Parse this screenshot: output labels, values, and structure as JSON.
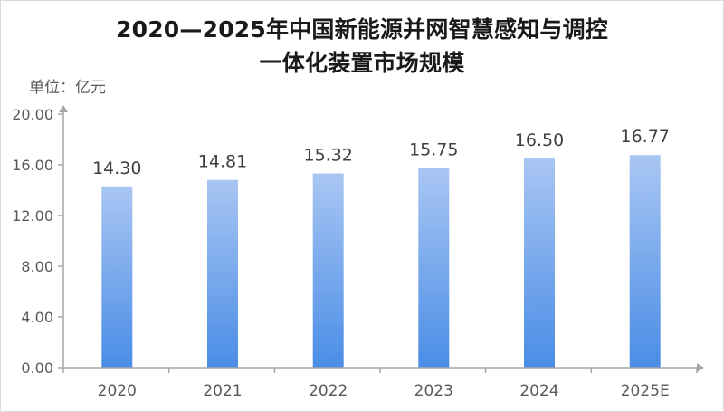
{
  "chart_data": {
    "type": "bar",
    "title_line1": "2020—2025年中国新能源并网智慧感知与调控",
    "title_line2": "一体化装置市场规模",
    "unit_label": "单位：亿元",
    "categories": [
      "2020",
      "2021",
      "2022",
      "2023",
      "2024",
      "2025E"
    ],
    "values": [
      14.3,
      14.81,
      15.32,
      15.75,
      16.5,
      16.77
    ],
    "value_labels": [
      "14.30",
      "14.81",
      "15.32",
      "15.75",
      "16.50",
      "16.77"
    ],
    "ylim": [
      0,
      20
    ],
    "yticks": [
      0,
      4,
      8,
      12,
      16,
      20
    ],
    "ytick_labels": [
      "0.00",
      "4.00",
      "8.00",
      "12.00",
      "16.00",
      "20.00"
    ],
    "grid": false,
    "colors": {
      "bar_top": "#a9c6f3",
      "bar_bottom": "#4a8de6",
      "axis": "#a6a6a6"
    }
  }
}
